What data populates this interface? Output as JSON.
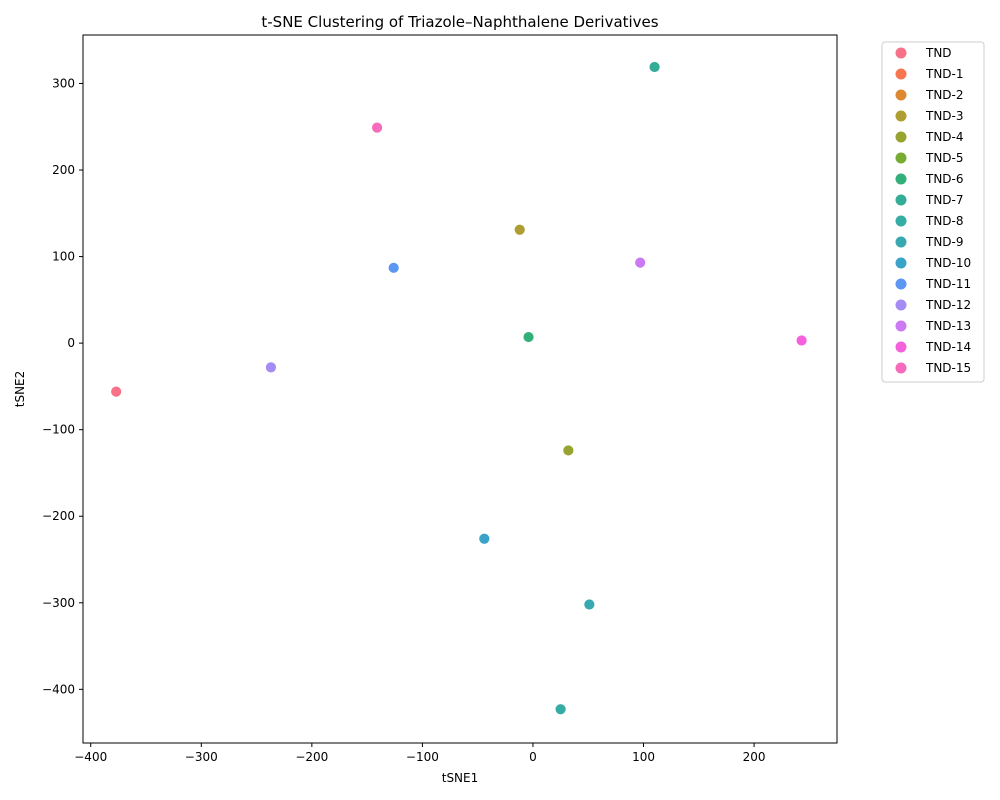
{
  "chart_data": {
    "type": "scatter",
    "title": "t-SNE Clustering of Triazole–Naphthalene Derivatives",
    "xlabel": "tSNE1",
    "ylabel": "tSNE2",
    "xlim": [
      -407,
      275
    ],
    "ylim": [
      -462,
      356
    ],
    "xticks": [
      -400,
      -300,
      -200,
      -100,
      0,
      100,
      200
    ],
    "yticks": [
      -400,
      -300,
      -200,
      -100,
      0,
      100,
      200,
      300
    ],
    "grid": false,
    "legend_position": "outside-right",
    "series": [
      {
        "name": "TND",
        "color": "#f77189",
        "points": [
          [
            -377,
            -56
          ]
        ]
      },
      {
        "name": "TND-1",
        "color": "#f7754f",
        "points": []
      },
      {
        "name": "TND-2",
        "color": "#dc8932",
        "points": []
      },
      {
        "name": "TND-3",
        "color": "#ae9d31",
        "points": [
          [
            -12,
            131
          ]
        ]
      },
      {
        "name": "TND-4",
        "color": "#97a431",
        "points": [
          [
            32,
            -124
          ]
        ]
      },
      {
        "name": "TND-5",
        "color": "#77ab31",
        "points": []
      },
      {
        "name": "TND-6",
        "color": "#33b07a",
        "points": [
          [
            -4,
            7
          ]
        ]
      },
      {
        "name": "TND-7",
        "color": "#35ac97",
        "points": [
          [
            110,
            319
          ]
        ]
      },
      {
        "name": "TND-8",
        "color": "#36ada4",
        "points": [
          [
            25,
            -423
          ]
        ]
      },
      {
        "name": "TND-9",
        "color": "#38a9b1",
        "points": [
          [
            51,
            -302
          ]
        ]
      },
      {
        "name": "TND-10",
        "color": "#3ba3c8",
        "points": [
          [
            -44,
            -226
          ]
        ]
      },
      {
        "name": "TND-11",
        "color": "#5c97f4",
        "points": [
          [
            -126,
            87
          ]
        ]
      },
      {
        "name": "TND-12",
        "color": "#a48cf4",
        "points": [
          [
            -237,
            -28
          ]
        ]
      },
      {
        "name": "TND-13",
        "color": "#cc7af4",
        "points": [
          [
            97,
            93
          ]
        ]
      },
      {
        "name": "TND-14",
        "color": "#f561dd",
        "points": [
          [
            243,
            3
          ]
        ]
      },
      {
        "name": "TND-15",
        "color": "#f66bbc",
        "points": [
          [
            -141,
            249
          ]
        ]
      }
    ]
  }
}
